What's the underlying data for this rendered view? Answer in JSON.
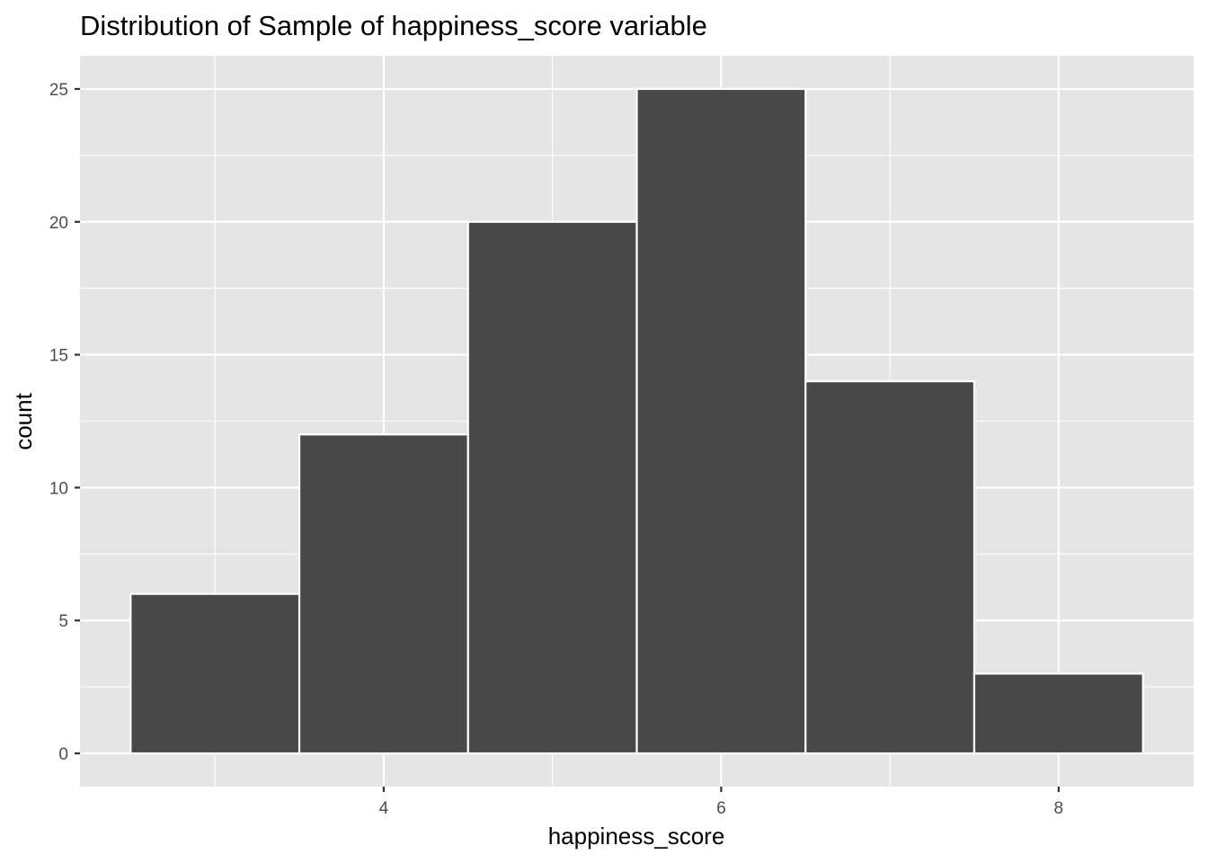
{
  "chart_data": {
    "type": "bar",
    "title": "Distribution of Sample of happiness_score variable",
    "xlabel": "happiness_score",
    "ylabel": "count",
    "bins": [
      {
        "x_start": 2.5,
        "x_end": 3.5,
        "count": 6
      },
      {
        "x_start": 3.5,
        "x_end": 4.5,
        "count": 12
      },
      {
        "x_start": 4.5,
        "x_end": 5.5,
        "count": 20
      },
      {
        "x_start": 5.5,
        "x_end": 6.5,
        "count": 25
      },
      {
        "x_start": 6.5,
        "x_end": 7.5,
        "count": 14
      },
      {
        "x_start": 7.5,
        "x_end": 8.5,
        "count": 3
      }
    ],
    "xlim": [
      2.2,
      8.8
    ],
    "ylim": [
      -1.25,
      26.25
    ],
    "x_ticks": [
      4,
      6,
      8
    ],
    "x_tick_labels": [
      "4",
      "6",
      "8"
    ],
    "x_minor_ticks": [
      3,
      5,
      7
    ],
    "y_ticks": [
      0,
      5,
      10,
      15,
      20,
      25
    ],
    "y_tick_labels": [
      "0",
      "5",
      "10",
      "15",
      "20",
      "25"
    ],
    "y_minor_ticks": [
      2.5,
      7.5,
      12.5,
      17.5,
      22.5
    ],
    "grid": true,
    "legend": "none",
    "colors": {
      "panel_background": "#e5e5e5",
      "grid": "#ffffff",
      "bar_fill": "#484848",
      "bar_outline": "#ffffff",
      "tick_text": "#4d4d4d",
      "tick_mark": "#333333"
    }
  }
}
